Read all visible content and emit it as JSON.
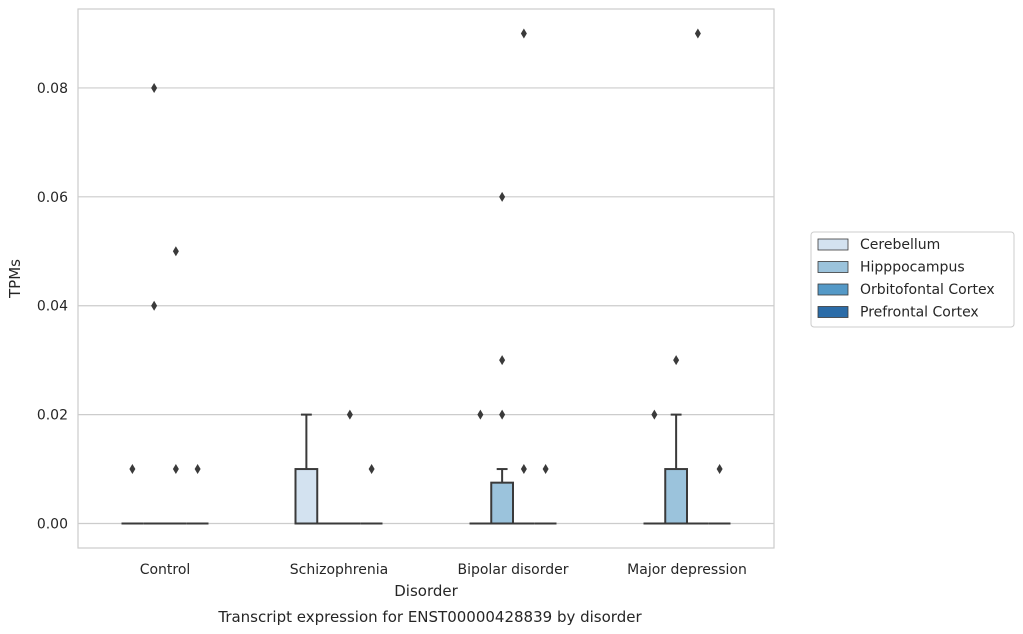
{
  "chart_data": {
    "type": "box",
    "title": "Transcript expression for ENST00000428839 by disorder",
    "xlabel": "Disorder",
    "ylabel": "TPMs",
    "ylim": [
      -0.0045,
      0.0945
    ],
    "yticks": [
      "0.00",
      "0.02",
      "0.04",
      "0.06",
      "0.08"
    ],
    "ytick_values": [
      0.0,
      0.02,
      0.04,
      0.06,
      0.08
    ],
    "grid": "horizontal",
    "legend_position": "right",
    "categories": [
      "Control",
      "Schizophrenia",
      "Bipolar disorder",
      "Major depression"
    ],
    "series": [
      {
        "name": "Cerebellum",
        "color": "#d3e2f0",
        "boxes": [
          {
            "min": 0,
            "q1": 0,
            "median": 0,
            "q3": 0,
            "max": 0,
            "outliers": [
              0.01
            ]
          },
          {
            "min": 0,
            "q1": 0,
            "median": 0,
            "q3": 0.01,
            "max": 0.02,
            "outliers": []
          },
          {
            "min": 0,
            "q1": 0,
            "median": 0,
            "q3": 0,
            "max": 0,
            "outliers": [
              0.02
            ]
          },
          {
            "min": 0,
            "q1": 0,
            "median": 0,
            "q3": 0,
            "max": 0,
            "outliers": [
              0.02
            ]
          }
        ]
      },
      {
        "name": "Hipppocampus",
        "color": "#9bc3dc",
        "boxes": [
          {
            "min": 0,
            "q1": 0,
            "median": 0,
            "q3": 0,
            "max": 0,
            "outliers": [
              0.08,
              0.04
            ]
          },
          {
            "min": 0,
            "q1": 0,
            "median": 0,
            "q3": 0,
            "max": 0,
            "outliers": []
          },
          {
            "min": 0,
            "q1": 0,
            "median": 0,
            "q3": 0.0075,
            "max": 0.01,
            "outliers": [
              0.06,
              0.03,
              0.02
            ]
          },
          {
            "min": 0,
            "q1": 0,
            "median": 0,
            "q3": 0.01,
            "max": 0.02,
            "outliers": [
              0.03
            ]
          }
        ]
      },
      {
        "name": "Orbitofontal Cortex",
        "color": "#5499c7",
        "boxes": [
          {
            "min": 0,
            "q1": 0,
            "median": 0,
            "q3": 0,
            "max": 0,
            "outliers": [
              0.05,
              0.01
            ]
          },
          {
            "min": 0,
            "q1": 0,
            "median": 0,
            "q3": 0,
            "max": 0,
            "outliers": [
              0.02
            ]
          },
          {
            "min": 0,
            "q1": 0,
            "median": 0,
            "q3": 0,
            "max": 0,
            "outliers": [
              0.09,
              0.01
            ]
          },
          {
            "min": 0,
            "q1": 0,
            "median": 0,
            "q3": 0,
            "max": 0,
            "outliers": [
              0.09
            ]
          }
        ]
      },
      {
        "name": "Prefrontal Cortex",
        "color": "#2b6ca8",
        "boxes": [
          {
            "min": 0,
            "q1": 0,
            "median": 0,
            "q3": 0,
            "max": 0,
            "outliers": [
              0.01
            ]
          },
          {
            "min": 0,
            "q1": 0,
            "median": 0,
            "q3": 0,
            "max": 0,
            "outliers": [
              0.01
            ]
          },
          {
            "min": 0,
            "q1": 0,
            "median": 0,
            "q3": 0,
            "max": 0,
            "outliers": [
              0.01
            ]
          },
          {
            "min": 0,
            "q1": 0,
            "median": 0,
            "q3": 0,
            "max": 0,
            "outliers": [
              0.01
            ]
          }
        ]
      }
    ]
  }
}
